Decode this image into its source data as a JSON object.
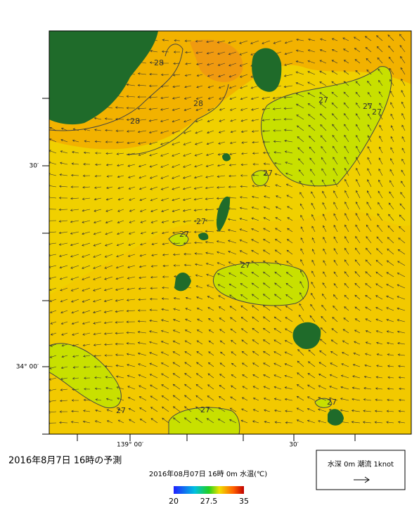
{
  "map": {
    "y_axis_labels": [
      "30′",
      "34° 00′"
    ],
    "x_axis_labels": [
      "139° 00′",
      "30′"
    ],
    "contour_labels": [
      28,
      28,
      28,
      27,
      27,
      27,
      27,
      27,
      27,
      27,
      27,
      27,
      27
    ]
  },
  "title": "2016年8月7日 16時の予測",
  "colorbar": {
    "caption": "2016年08月07日 16時 0m 水温(℃)",
    "ticks": [
      20,
      27.5,
      35
    ]
  },
  "legend": {
    "text": "水深 0m 潮流 1knot"
  }
}
